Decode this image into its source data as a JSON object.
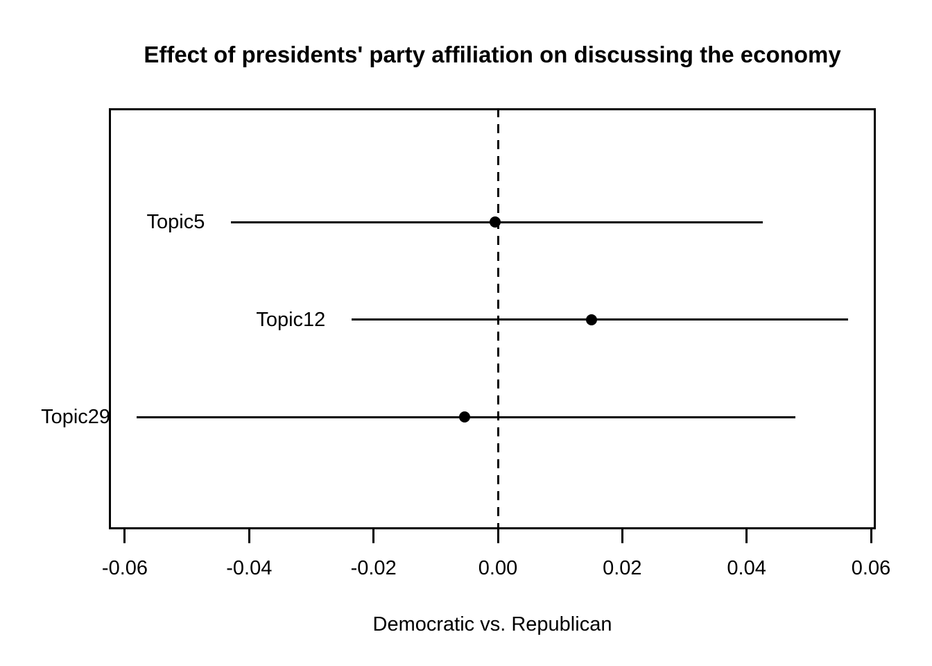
{
  "chart_data": {
    "type": "scatter",
    "title": "Effect of presidents' party affiliation on discussing the economy",
    "xlabel": "Democratic vs. Republican",
    "ylabel": "",
    "xlim": [
      -0.06,
      0.06
    ],
    "x_ticks": [
      -0.06,
      -0.04,
      -0.02,
      0.0,
      0.02,
      0.04,
      0.06
    ],
    "x_tick_labels": [
      "-0.06",
      "-0.04",
      "-0.02",
      "0.00",
      "0.02",
      "0.04",
      "0.06"
    ],
    "reference_line": {
      "x": 0.0,
      "style": "dashed"
    },
    "grid": false,
    "legend": "none",
    "series": [
      {
        "label": "Topic5",
        "estimate": -0.0004,
        "ci_lower": -0.0429,
        "ci_upper": 0.0426
      },
      {
        "label": "Topic12",
        "estimate": 0.015,
        "ci_lower": -0.0235,
        "ci_upper": 0.0563
      },
      {
        "label": "Topic29",
        "estimate": -0.0054,
        "ci_lower": -0.0581,
        "ci_upper": 0.0478
      }
    ],
    "colors": {
      "foreground": "#000000",
      "background": "#ffffff"
    }
  }
}
